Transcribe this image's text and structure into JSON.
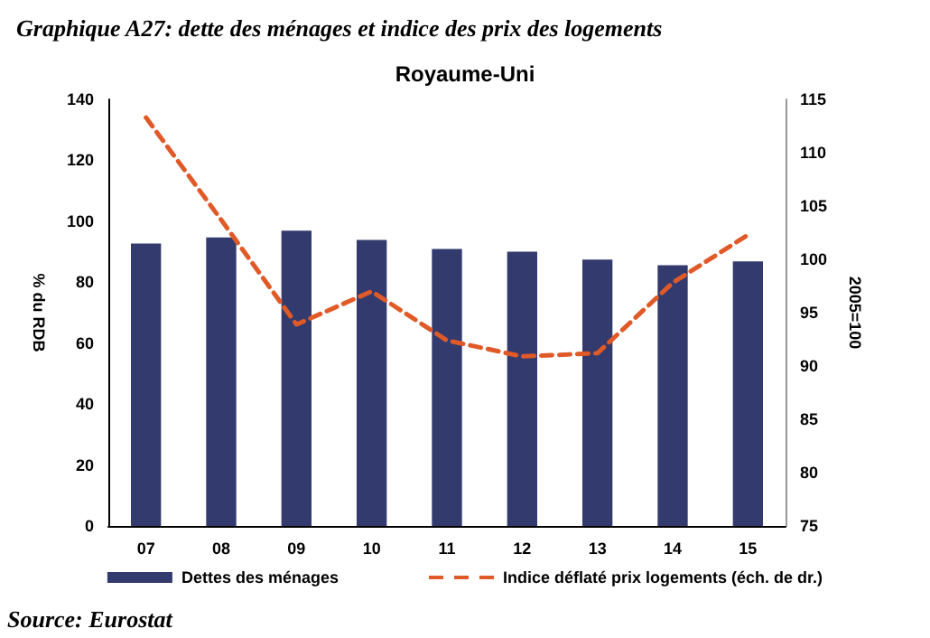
{
  "chart_data": {
    "type": "bar",
    "title": "Graphique A27: dette des ménages et indice des prix des logements",
    "subtitle": "Royaume-Uni",
    "ylabel": "% du RDB",
    "y2label": "2005=100",
    "categories": [
      "07",
      "08",
      "09",
      "10",
      "11",
      "12",
      "13",
      "14",
      "15"
    ],
    "series": [
      {
        "name": "Dettes des ménages",
        "color": "#333a6e",
        "values": [
          92.7,
          94.7,
          96.9,
          93.9,
          90.9,
          90.0,
          87.4,
          85.6,
          86.8
        ]
      },
      {
        "name": "Indice déflaté prix logements (éch. de dr.)",
        "type": "line",
        "axis": "y2",
        "color": "#e05a28",
        "line_style": "dashed",
        "marker": "none",
        "values": [
          113.3,
          103.7,
          93.9,
          97.0,
          92.4,
          90.9,
          91.2,
          97.8,
          102.3
        ]
      }
    ],
    "ylim": [
      0,
      140
    ],
    "yticks": [
      0,
      20,
      40,
      60,
      80,
      100,
      120,
      140
    ],
    "y2lim": [
      75,
      115
    ],
    "y2ticks": [
      75,
      80,
      85,
      90,
      95,
      100,
      105,
      110,
      115
    ],
    "grid": false,
    "legend": "bottom",
    "annotations": [
      "Source: Eurostat"
    ]
  }
}
